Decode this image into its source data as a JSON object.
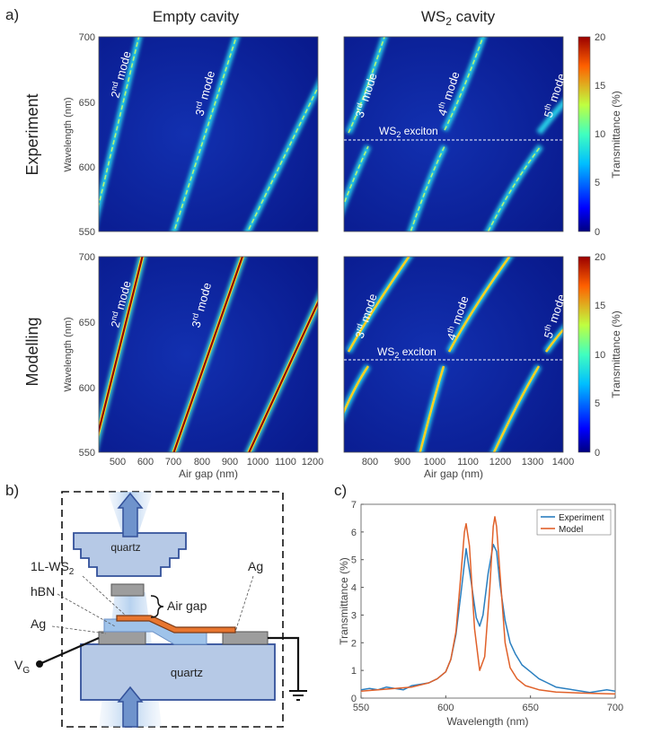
{
  "panel_labels": {
    "a": "a)",
    "b": "b)",
    "c": "c)"
  },
  "col_titles": {
    "empty": "Empty cavity",
    "ws2": "WS",
    "ws2_sub": "2",
    "ws2_rest": " cavity"
  },
  "row_titles": {
    "exp": "Experiment",
    "mod": "Modelling"
  },
  "heatmap_axes": {
    "ylabel": "Wavelength (nm)",
    "xlabel": "Air gap (nm)",
    "y_ticks": [
      "700",
      "650",
      "600",
      "550"
    ],
    "x_ticks_left": [
      "500",
      "600",
      "700",
      "800",
      "900",
      "1000",
      "1100",
      "1200"
    ],
    "x_ticks_right": [
      "800",
      "900",
      "1000",
      "1100",
      "1200",
      "1300",
      "1400"
    ]
  },
  "colorbar": {
    "label": "Transmittance (%)",
    "ticks": [
      "20",
      "15",
      "10",
      "5",
      "0"
    ]
  },
  "mode_labels": {
    "m2": {
      "num": "2",
      "sup": "nd",
      "rest": " mode"
    },
    "m3": {
      "num": "3",
      "sup": "rd",
      "rest": " mode"
    },
    "m4": {
      "num": "4",
      "sup": "th",
      "rest": " mode"
    },
    "m5": {
      "num": "5",
      "sup": "th",
      "rest": " mode"
    }
  },
  "exciton_label": {
    "pre": "WS",
    "sub": "2",
    "post": " exciton"
  },
  "schematic": {
    "quartz_top": "quartz",
    "quartz_bottom": "quartz",
    "lbl_ws2_pre": "1L-WS",
    "lbl_ws2_sub": "2",
    "lbl_hbn": "hBN",
    "lbl_ag_left": "Ag",
    "lbl_ag_right": "Ag",
    "lbl_airgap": "Air gap",
    "lbl_vg": "V",
    "lbl_vg_sub": "G"
  },
  "colors": {
    "cavity_bg": "#0a1f9c",
    "mode_line": "#8b0000",
    "exp_line": "#2a7fc0",
    "model_line": "#e0612a"
  },
  "chart_data": {
    "type": "line",
    "xlabel": "Wavelength (nm)",
    "ylabel": "Transmittance (%)",
    "xlim": [
      550,
      700
    ],
    "ylim": [
      0,
      7
    ],
    "x_ticks": [
      550,
      600,
      650,
      700
    ],
    "y_ticks": [
      0,
      1,
      2,
      3,
      4,
      5,
      6,
      7
    ],
    "legend_position": "top-right",
    "series": [
      {
        "name": "Experiment",
        "x": [
          550,
          555,
          560,
          565,
          570,
          575,
          580,
          585,
          590,
          595,
          600,
          603,
          606,
          609,
          612,
          615,
          618,
          620,
          622,
          625,
          628,
          630,
          632,
          635,
          638,
          641,
          645,
          650,
          655,
          660,
          665,
          670,
          675,
          680,
          685,
          690,
          695,
          700
        ],
        "y": [
          0.3,
          0.35,
          0.3,
          0.4,
          0.35,
          0.3,
          0.45,
          0.5,
          0.55,
          0.7,
          0.95,
          1.4,
          2.3,
          3.8,
          5.4,
          4.2,
          2.9,
          2.6,
          3.0,
          4.5,
          5.55,
          5.3,
          4.1,
          2.8,
          2.0,
          1.6,
          1.2,
          0.95,
          0.7,
          0.55,
          0.4,
          0.35,
          0.3,
          0.25,
          0.2,
          0.25,
          0.3,
          0.25
        ]
      },
      {
        "name": "Model",
        "x": [
          550,
          560,
          570,
          580,
          590,
          595,
          600,
          603,
          606,
          609,
          611,
          612,
          614,
          617,
          620,
          623,
          626,
          628,
          629,
          630,
          632,
          635,
          638,
          642,
          647,
          655,
          665,
          680,
          700
        ],
        "y": [
          0.25,
          0.3,
          0.35,
          0.4,
          0.55,
          0.7,
          0.95,
          1.4,
          2.4,
          4.5,
          6.0,
          6.3,
          5.5,
          2.5,
          1.0,
          1.5,
          4.0,
          6.2,
          6.55,
          6.2,
          4.5,
          2.0,
          1.1,
          0.7,
          0.45,
          0.3,
          0.22,
          0.18,
          0.15
        ]
      }
    ]
  }
}
